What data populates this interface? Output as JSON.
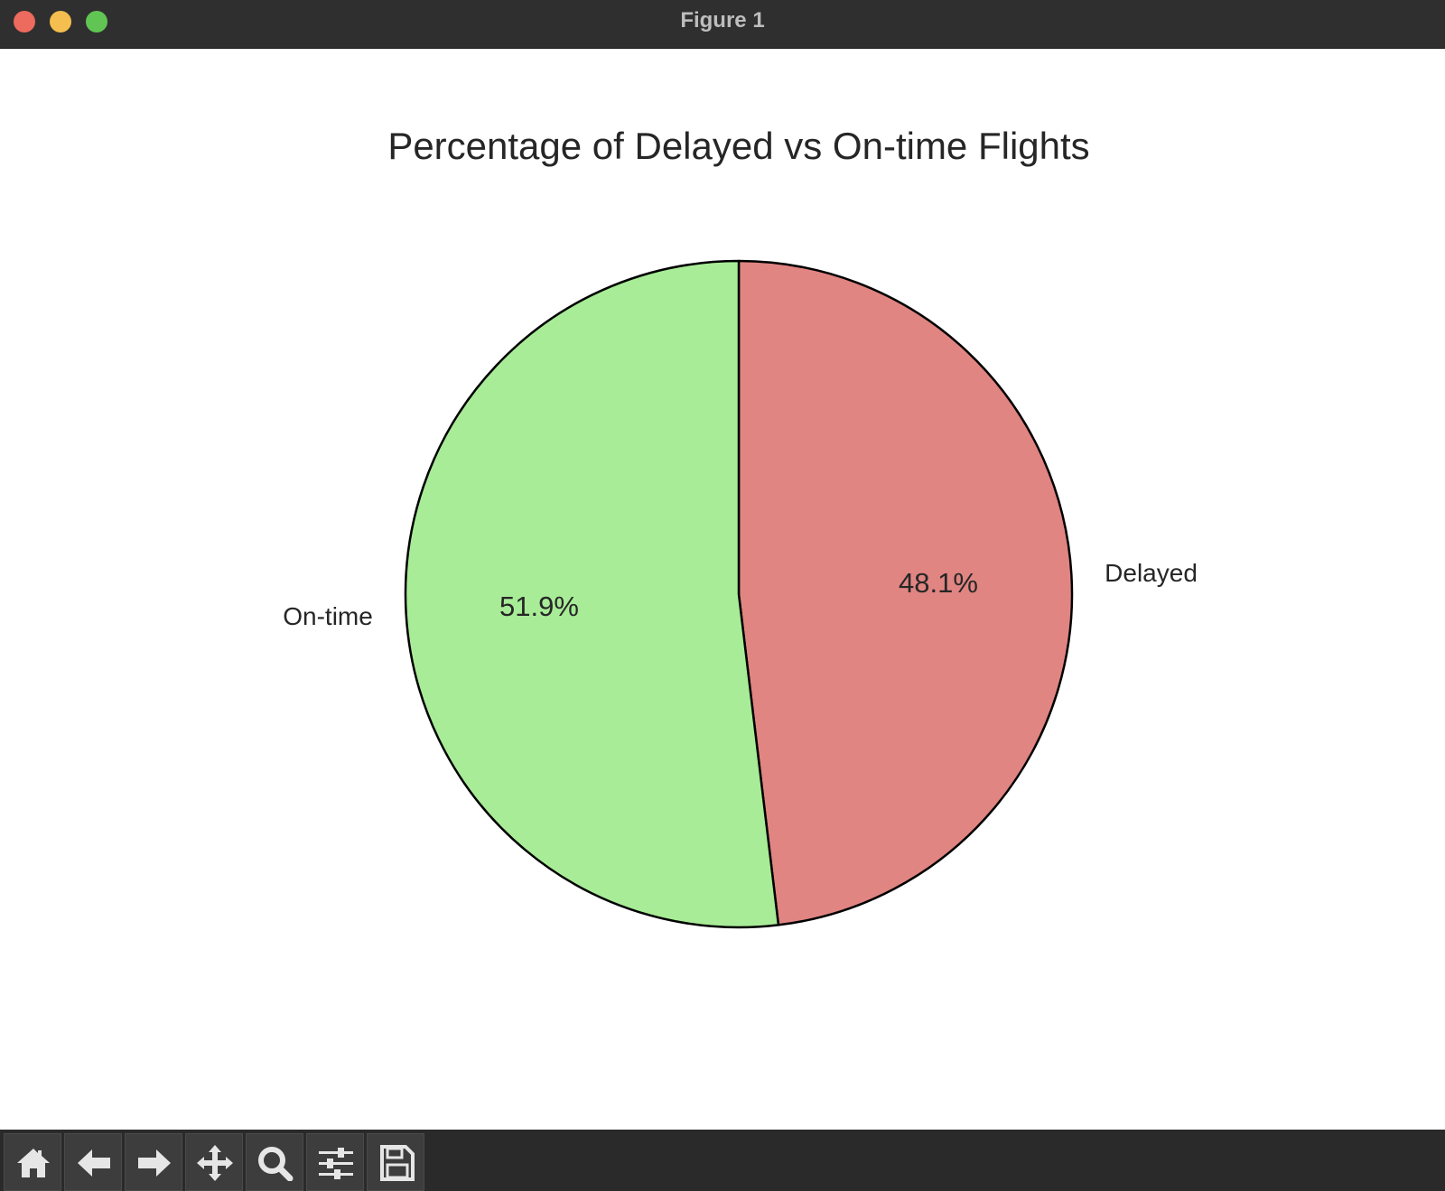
{
  "window": {
    "title": "Figure 1"
  },
  "toolbar": {
    "buttons": [
      {
        "name": "home",
        "icon": "home-icon"
      },
      {
        "name": "back",
        "icon": "arrow-left-icon"
      },
      {
        "name": "forward",
        "icon": "arrow-right-icon"
      },
      {
        "name": "pan",
        "icon": "move-icon"
      },
      {
        "name": "zoom",
        "icon": "magnifier-icon"
      },
      {
        "name": "configure-subplots",
        "icon": "sliders-icon"
      },
      {
        "name": "save",
        "icon": "floppy-disk-icon"
      }
    ]
  },
  "chart_data": {
    "type": "pie",
    "title": "Percentage of Delayed vs On-time Flights",
    "slices": [
      {
        "label": "Delayed",
        "value": 48.1,
        "pct_label": "48.1%",
        "color": "#e08582"
      },
      {
        "label": "On-time",
        "value": 51.9,
        "pct_label": "51.9%",
        "color": "#a8ec97"
      }
    ],
    "start_angle": 90,
    "direction": "clockwise",
    "edge_color": "#000000",
    "legend": "none"
  }
}
